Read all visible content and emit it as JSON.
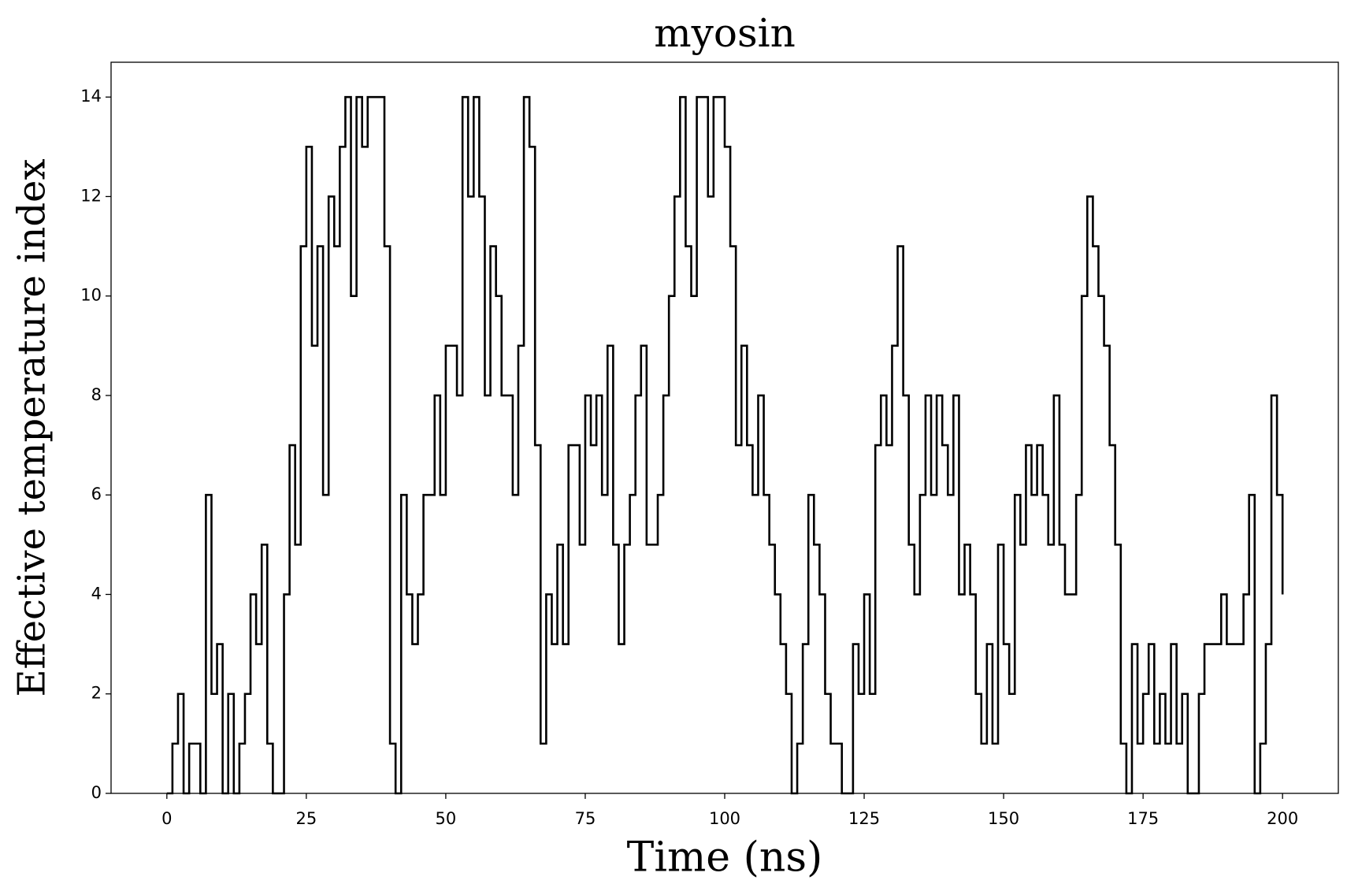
{
  "chart_data": {
    "type": "line",
    "drawstyle": "steps-post",
    "title": "myosin",
    "x_label": "Time (ns)",
    "y_label": "Effective temperature index",
    "x": [
      0,
      1,
      2,
      3,
      4,
      5,
      6,
      7,
      8,
      9,
      10,
      11,
      12,
      13,
      14,
      15,
      16,
      17,
      18,
      19,
      20,
      21,
      22,
      23,
      24,
      25,
      26,
      27,
      28,
      29,
      30,
      31,
      32,
      33,
      34,
      35,
      36,
      37,
      38,
      39,
      40,
      41,
      42,
      43,
      44,
      45,
      46,
      47,
      48,
      49,
      50,
      51,
      52,
      53,
      54,
      55,
      56,
      57,
      58,
      59,
      60,
      61,
      62,
      63,
      64,
      65,
      66,
      67,
      68,
      69,
      70,
      71,
      72,
      73,
      74,
      75,
      76,
      77,
      78,
      79,
      80,
      81,
      82,
      83,
      84,
      85,
      86,
      87,
      88,
      89,
      90,
      91,
      92,
      93,
      94,
      95,
      96,
      97,
      98,
      99,
      100,
      101,
      102,
      103,
      104,
      105,
      106,
      107,
      108,
      109,
      110,
      111,
      112,
      113,
      114,
      115,
      116,
      117,
      118,
      119,
      120,
      121,
      122,
      123,
      124,
      125,
      126,
      127,
      128,
      129,
      130,
      131,
      132,
      133,
      134,
      135,
      136,
      137,
      138,
      139,
      140,
      141,
      142,
      143,
      144,
      145,
      146,
      147,
      148,
      149,
      150,
      151,
      152,
      153,
      154,
      155,
      156,
      157,
      158,
      159,
      160,
      161,
      162,
      163,
      164,
      165,
      166,
      167,
      168,
      169,
      170,
      171,
      172,
      173,
      174,
      175,
      176,
      177,
      178,
      179,
      180,
      181,
      182,
      183,
      184,
      185,
      186,
      187,
      188,
      189,
      190,
      191,
      192,
      193,
      194,
      195,
      196,
      197,
      198,
      199,
      200
    ],
    "series": [
      {
        "color": "#000000",
        "values": [
          0,
          1,
          2,
          0,
          1,
          1,
          0,
          6,
          2,
          3,
          0,
          2,
          0,
          1,
          2,
          4,
          3,
          5,
          1,
          0,
          0,
          4,
          7,
          5,
          11,
          13,
          9,
          11,
          6,
          12,
          11,
          13,
          14,
          10,
          14,
          13,
          14,
          14,
          14,
          11,
          1,
          0,
          6,
          4,
          3,
          4,
          6,
          6,
          8,
          6,
          9,
          9,
          8,
          14,
          12,
          14,
          12,
          8,
          11,
          10,
          8,
          8,
          6,
          9,
          14,
          13,
          7,
          1,
          4,
          3,
          5,
          3,
          7,
          7,
          5,
          8,
          7,
          8,
          6,
          9,
          5,
          3,
          5,
          6,
          8,
          9,
          5,
          5,
          6,
          8,
          10,
          12,
          14,
          11,
          10,
          14,
          14,
          12,
          14,
          14,
          13,
          11,
          7,
          9,
          7,
          6,
          8,
          6,
          5,
          4,
          3,
          2,
          0,
          1,
          3,
          6,
          5,
          4,
          2,
          1,
          1,
          0,
          0,
          3,
          2,
          4,
          2,
          7,
          8,
          7,
          9,
          11,
          8,
          5,
          4,
          6,
          8,
          6,
          8,
          7,
          6,
          8,
          4,
          5,
          4,
          2,
          1,
          3,
          1,
          5,
          3,
          2,
          6,
          5,
          7,
          6,
          7,
          6,
          5,
          8,
          5,
          4,
          4,
          6,
          10,
          12,
          11,
          10,
          9,
          7,
          5,
          1,
          0,
          3,
          1,
          2,
          3,
          1,
          2,
          1,
          3,
          1,
          2,
          0,
          0,
          2,
          3,
          3,
          3,
          4,
          3,
          3,
          3,
          4,
          6,
          0,
          1,
          3,
          8,
          6,
          4
        ]
      }
    ],
    "xlim": [
      -10,
      210
    ],
    "xticks": [
      0,
      25,
      50,
      75,
      100,
      125,
      150,
      175,
      200
    ],
    "ylim": [
      0,
      14.7
    ],
    "yticks": [
      0,
      2,
      4,
      6,
      8,
      10,
      12,
      14
    ]
  }
}
